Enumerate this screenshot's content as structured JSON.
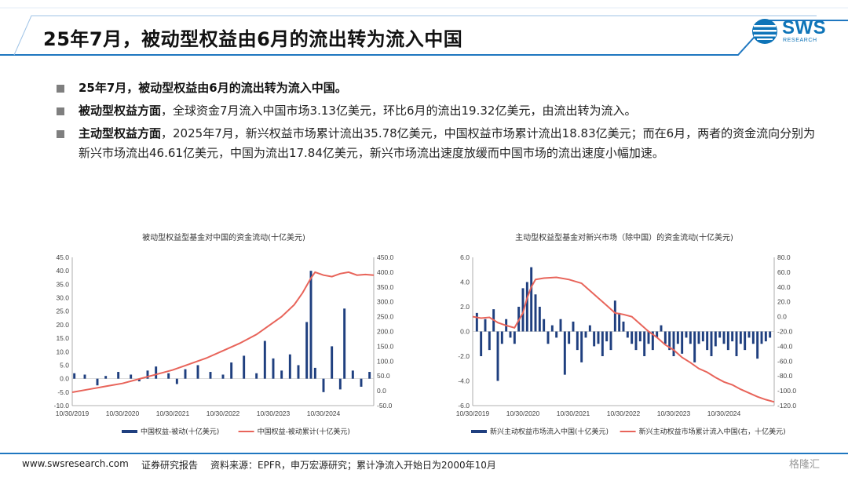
{
  "header": {
    "title": "25年7月，被动型权益由6月的流出转为流入中国",
    "logo_word": "SWS",
    "logo_sub": "RESEARCH"
  },
  "bullets": [
    {
      "bold": "25年7月，被动型权益由6月的流出转为流入中国。",
      "text": ""
    },
    {
      "bold": "被动型权益方面",
      "text": "，全球资金7月流入中国市场3.13亿美元，环比6月的流出19.32亿美元，由流出转为流入。"
    },
    {
      "bold": "主动型权益方面",
      "text": "，2025年7月，新兴权益市场累计流出35.78亿美元，中国权益市场累计流出18.83亿美元；而在6月，两者的资金流向分别为新兴市场流出46.61亿美元，中国为流出17.84亿美元，新兴市场流出速度放缓而中国市场的流出速度小幅加速。"
    }
  ],
  "colors": {
    "bar": "#1f3f7f",
    "line": "#e8645a",
    "accent": "#1f77c0"
  },
  "chart_data": [
    {
      "type": "bar+line",
      "title": "被动型权益型基金对中国的资金流动(十亿美元)",
      "x_ticks": [
        "10/30/2019",
        "10/30/2020",
        "10/30/2021",
        "10/30/2022",
        "10/30/2023",
        "10/30/2024"
      ],
      "y_left": {
        "min": -10,
        "max": 45,
        "ticks": [
          "45.0",
          "40.0",
          "35.0",
          "30.0",
          "25.0",
          "20.0",
          "15.0",
          "10.0",
          "5.0",
          "0.0",
          "-5.0",
          "-10.0"
        ]
      },
      "y_right": {
        "min": -50,
        "max": 450,
        "ticks": [
          "450.0",
          "400.0",
          "350.0",
          "300.0",
          "250.0",
          "200.0",
          "150.0",
          "100.0",
          "50.0",
          "0.0",
          "-50.0"
        ]
      },
      "x_range": [
        0,
        72
      ],
      "series": [
        {
          "name": "中国权益-被动(十亿美元)",
          "axis": "left",
          "style": "bar",
          "points": [
            [
              0.5,
              2.0
            ],
            [
              3,
              1.5
            ],
            [
              6,
              -2.5
            ],
            [
              8,
              1.0
            ],
            [
              11,
              2.5
            ],
            [
              14,
              1.5
            ],
            [
              16,
              -1.0
            ],
            [
              18,
              3.0
            ],
            [
              20,
              4.5
            ],
            [
              23,
              2.0
            ],
            [
              25,
              -2.0
            ],
            [
              27,
              3.5
            ],
            [
              30,
              5.0
            ],
            [
              33,
              2.5
            ],
            [
              36,
              1.5
            ],
            [
              38,
              6.0
            ],
            [
              41,
              8.5
            ],
            [
              44,
              2.0
            ],
            [
              46,
              14.0
            ],
            [
              48,
              7.5
            ],
            [
              50,
              3.0
            ],
            [
              52,
              9.0
            ],
            [
              54,
              5.0
            ],
            [
              56,
              21.0
            ],
            [
              57,
              40.0
            ],
            [
              58,
              4.0
            ],
            [
              60,
              -5.0
            ],
            [
              62,
              12.0
            ],
            [
              64,
              -4.0
            ],
            [
              65,
              26.0
            ],
            [
              67,
              3.0
            ],
            [
              69,
              -3.0
            ],
            [
              71,
              2.5
            ]
          ]
        },
        {
          "name": "中国权益-被动累计(十亿美元)",
          "axis": "right",
          "style": "line",
          "points": [
            [
              0,
              -5
            ],
            [
              4,
              5
            ],
            [
              8,
              15
            ],
            [
              12,
              25
            ],
            [
              16,
              40
            ],
            [
              20,
              55
            ],
            [
              24,
              70
            ],
            [
              28,
              90
            ],
            [
              32,
              110
            ],
            [
              36,
              135
            ],
            [
              40,
              160
            ],
            [
              44,
              190
            ],
            [
              47,
              220
            ],
            [
              50,
              250
            ],
            [
              53,
              290
            ],
            [
              55,
              330
            ],
            [
              57,
              380
            ],
            [
              58,
              400
            ],
            [
              60,
              390
            ],
            [
              62,
              385
            ],
            [
              64,
              395
            ],
            [
              66,
              400
            ],
            [
              68,
              390
            ],
            [
              70,
              392
            ],
            [
              72,
              390
            ]
          ]
        }
      ]
    },
    {
      "type": "bar+line",
      "title": "主动型权益型基金对新兴市场（除中国）的资金流动(十亿美元)",
      "x_ticks": [
        "10/30/2019",
        "10/30/2020",
        "10/30/2021",
        "10/30/2022",
        "10/30/2023",
        "10/30/2024"
      ],
      "y_left": {
        "min": -6,
        "max": 6,
        "ticks": [
          "6.0",
          "4.0",
          "2.0",
          "0.0",
          "-2.0",
          "-4.0",
          "-6.0"
        ]
      },
      "y_right": {
        "min": -120,
        "max": 80,
        "ticks": [
          "80.0",
          "60.0",
          "40.0",
          "20.0",
          "0.0",
          "-20.0",
          "-40.0",
          "-60.0",
          "-80.0",
          "-100.0",
          "-120.0"
        ]
      },
      "x_range": [
        0,
        72
      ],
      "series": [
        {
          "name": "新兴主动权益市场流入中国(十亿美元)",
          "axis": "left",
          "style": "bar",
          "points": [
            [
              1,
              1.5
            ],
            [
              2,
              -2.0
            ],
            [
              3,
              1.0
            ],
            [
              4,
              -1.5
            ],
            [
              5,
              1.8
            ],
            [
              6,
              -4.0
            ],
            [
              7,
              -1.0
            ],
            [
              8,
              1.0
            ],
            [
              9,
              -0.5
            ],
            [
              10,
              -1.0
            ],
            [
              11,
              2.0
            ],
            [
              12,
              3.5
            ],
            [
              13,
              4.0
            ],
            [
              14,
              5.2
            ],
            [
              15,
              3.0
            ],
            [
              16,
              2.0
            ],
            [
              17,
              1.0
            ],
            [
              18,
              -1.0
            ],
            [
              19,
              0.5
            ],
            [
              20,
              -0.5
            ],
            [
              21,
              1.0
            ],
            [
              22,
              -3.5
            ],
            [
              23,
              -1.0
            ],
            [
              24,
              0.8
            ],
            [
              25,
              -1.5
            ],
            [
              26,
              -2.5
            ],
            [
              27,
              -0.5
            ],
            [
              28,
              0.5
            ],
            [
              29,
              -1.2
            ],
            [
              30,
              -1.0
            ],
            [
              31,
              -2.0
            ],
            [
              32,
              -0.8
            ],
            [
              33,
              -1.5
            ],
            [
              34,
              2.5
            ],
            [
              35,
              1.5
            ],
            [
              36,
              0.8
            ],
            [
              37,
              -0.5
            ],
            [
              38,
              -1.0
            ],
            [
              39,
              -1.5
            ],
            [
              40,
              -0.8
            ],
            [
              41,
              -2.0
            ],
            [
              42,
              -1.0
            ],
            [
              43,
              -1.5
            ],
            [
              44,
              -0.5
            ],
            [
              45,
              0.5
            ],
            [
              46,
              -1.0
            ],
            [
              47,
              -1.5
            ],
            [
              48,
              -2.0
            ],
            [
              49,
              -1.0
            ],
            [
              50,
              -1.8
            ],
            [
              51,
              -0.5
            ],
            [
              52,
              -1.0
            ],
            [
              53,
              -2.5
            ],
            [
              54,
              -1.0
            ],
            [
              55,
              -0.8
            ],
            [
              56,
              -1.5
            ],
            [
              57,
              -2.0
            ],
            [
              58,
              -1.2
            ],
            [
              59,
              -0.5
            ],
            [
              60,
              -1.0
            ],
            [
              61,
              -1.5
            ],
            [
              62,
              -0.8
            ],
            [
              63,
              -2.0
            ],
            [
              64,
              -1.0
            ],
            [
              65,
              -1.5
            ],
            [
              66,
              -0.5
            ],
            [
              67,
              -1.0
            ],
            [
              68,
              -2.2
            ],
            [
              69,
              -1.0
            ],
            [
              70,
              -0.8
            ],
            [
              71,
              -0.5
            ]
          ]
        },
        {
          "name": "新兴主动权益市场累计流入中国(右，十亿美元)",
          "axis": "right",
          "style": "line",
          "points": [
            [
              0,
              0
            ],
            [
              2,
              -2
            ],
            [
              4,
              -1
            ],
            [
              6,
              -8
            ],
            [
              8,
              -12
            ],
            [
              10,
              -15
            ],
            [
              12,
              5
            ],
            [
              13,
              25
            ],
            [
              14,
              40
            ],
            [
              15,
              50
            ],
            [
              17,
              52
            ],
            [
              20,
              53
            ],
            [
              23,
              50
            ],
            [
              26,
              45
            ],
            [
              29,
              30
            ],
            [
              32,
              15
            ],
            [
              34,
              5
            ],
            [
              36,
              3
            ],
            [
              38,
              0
            ],
            [
              40,
              -10
            ],
            [
              42,
              -20
            ],
            [
              44,
              -28
            ],
            [
              46,
              -38
            ],
            [
              48,
              -45
            ],
            [
              50,
              -55
            ],
            [
              52,
              -62
            ],
            [
              54,
              -70
            ],
            [
              56,
              -75
            ],
            [
              58,
              -82
            ],
            [
              60,
              -88
            ],
            [
              62,
              -92
            ],
            [
              64,
              -98
            ],
            [
              66,
              -103
            ],
            [
              68,
              -108
            ],
            [
              70,
              -112
            ],
            [
              72,
              -115
            ]
          ]
        }
      ]
    }
  ],
  "footer": {
    "website": "www.swsresearch.com",
    "report_type": "证券研究报告",
    "source": "资料来源：EPFR，申万宏源研究；累计净流入开始日为2000年10月",
    "watermark": "格隆汇"
  }
}
